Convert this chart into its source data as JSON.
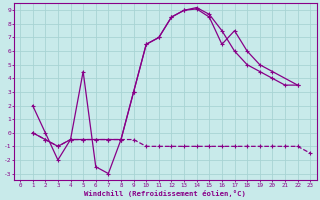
{
  "background_color": "#c8eaea",
  "grid_color": "#a8d4d4",
  "line_color": "#880088",
  "xlim": [
    -0.5,
    23.5
  ],
  "ylim": [
    -3.5,
    9.5
  ],
  "xticks": [
    0,
    1,
    2,
    3,
    4,
    5,
    6,
    7,
    8,
    9,
    10,
    11,
    12,
    13,
    14,
    15,
    16,
    17,
    18,
    19,
    20,
    21,
    22,
    23
  ],
  "yticks": [
    -3,
    -2,
    -1,
    0,
    1,
    2,
    3,
    4,
    5,
    6,
    7,
    8,
    9
  ],
  "xlabel": "Windchill (Refroidissement éolien,°C)",
  "series1_x": [
    1,
    2,
    3,
    4,
    5,
    6,
    7,
    8,
    9,
    10,
    11,
    12,
    13,
    14,
    15,
    16,
    17,
    18,
    19,
    20,
    22
  ],
  "series1_y": [
    2,
    0,
    -2,
    -0.5,
    4.5,
    -2.5,
    -3,
    -0.5,
    3.0,
    6.5,
    7.0,
    8.5,
    9.0,
    9.1,
    8.5,
    6.5,
    7.5,
    6.0,
    5.0,
    4.5,
    3.5
  ],
  "series2_x": [
    1,
    2,
    3,
    4,
    5,
    6,
    7,
    8,
    9,
    10,
    11,
    12,
    13,
    14,
    15,
    16,
    17,
    18,
    19,
    20,
    21,
    22,
    23
  ],
  "series2_y": [
    0,
    -0.5,
    -1.0,
    -0.5,
    -0.5,
    -0.5,
    -0.5,
    -0.5,
    -0.5,
    -1,
    -1,
    -1,
    -1,
    -1,
    -1,
    -1,
    -1,
    -1,
    -1,
    -1,
    -1,
    -1,
    -1.5
  ],
  "series3_x": [
    1,
    2,
    3,
    4,
    5,
    6,
    7,
    8,
    9,
    10,
    11,
    12,
    13,
    14,
    15,
    16,
    17,
    18,
    19,
    20,
    21,
    22
  ],
  "series3_y": [
    0,
    -0.5,
    -1.0,
    -0.5,
    -0.5,
    -0.5,
    -0.5,
    -0.5,
    3.0,
    6.5,
    7.0,
    8.5,
    9.0,
    9.2,
    8.7,
    7.5,
    6.0,
    5.0,
    4.5,
    4.0,
    3.5,
    3.5
  ]
}
